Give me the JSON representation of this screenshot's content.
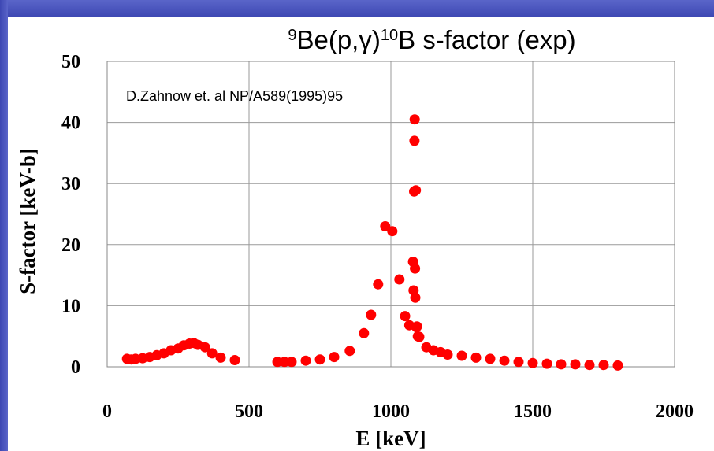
{
  "colors": {
    "frame": "#4650bd",
    "point": "#ff0000",
    "grid": "#9a9a9a"
  },
  "chart_data": {
    "type": "scatter",
    "title": {
      "parts": [
        {
          "text": "9",
          "sup": true
        },
        {
          "text": "Be(p,",
          "sup": false
        },
        {
          "text": "γ",
          "sup": false
        },
        {
          "text": ")",
          "sup": false
        },
        {
          "text": "10",
          "sup": true
        },
        {
          "text": "B s-factor (exp)",
          "sup": false
        }
      ]
    },
    "annotation": "D.Zahnow et. al  NP/A589(1995)95",
    "xlabel": "E [keV]",
    "ylabel": "S-factor [keV-b]",
    "xlim": [
      0,
      2000
    ],
    "ylim": [
      0,
      50
    ],
    "xticks": [
      0,
      500,
      1000,
      1500,
      2000
    ],
    "yticks": [
      0,
      10,
      20,
      30,
      40,
      50
    ],
    "grid": true,
    "series": [
      {
        "x": [
          70,
          85,
          100,
          125,
          150,
          175,
          200,
          225,
          250,
          270,
          290,
          305,
          320,
          345,
          370,
          400,
          450,
          600,
          625,
          650,
          700,
          750,
          800,
          855,
          905,
          930,
          955,
          980,
          1005,
          1030,
          1050,
          1065,
          1078,
          1080,
          1082,
          1083,
          1084,
          1085,
          1086,
          1088,
          1090,
          1092,
          1095,
          1100,
          1125,
          1150,
          1175,
          1200,
          1250,
          1300,
          1350,
          1400,
          1450,
          1500,
          1550,
          1600,
          1650,
          1700,
          1750,
          1800
        ],
        "y": [
          1.3,
          1.2,
          1.3,
          1.4,
          1.6,
          1.9,
          2.2,
          2.7,
          3.0,
          3.5,
          3.8,
          3.9,
          3.6,
          3.2,
          2.2,
          1.5,
          1.1,
          0.8,
          0.8,
          0.8,
          1.0,
          1.2,
          1.6,
          2.6,
          5.5,
          8.5,
          13.5,
          23.0,
          22.2,
          14.3,
          8.3,
          6.8,
          17.2,
          12.5,
          28.7,
          37.0,
          40.5,
          16.1,
          11.3,
          28.9,
          6.5,
          6.6,
          5.0,
          4.9,
          3.2,
          2.7,
          2.4,
          2.0,
          1.8,
          1.5,
          1.3,
          1.0,
          0.8,
          0.6,
          0.5,
          0.4,
          0.4,
          0.3,
          0.3,
          0.2
        ]
      }
    ]
  }
}
